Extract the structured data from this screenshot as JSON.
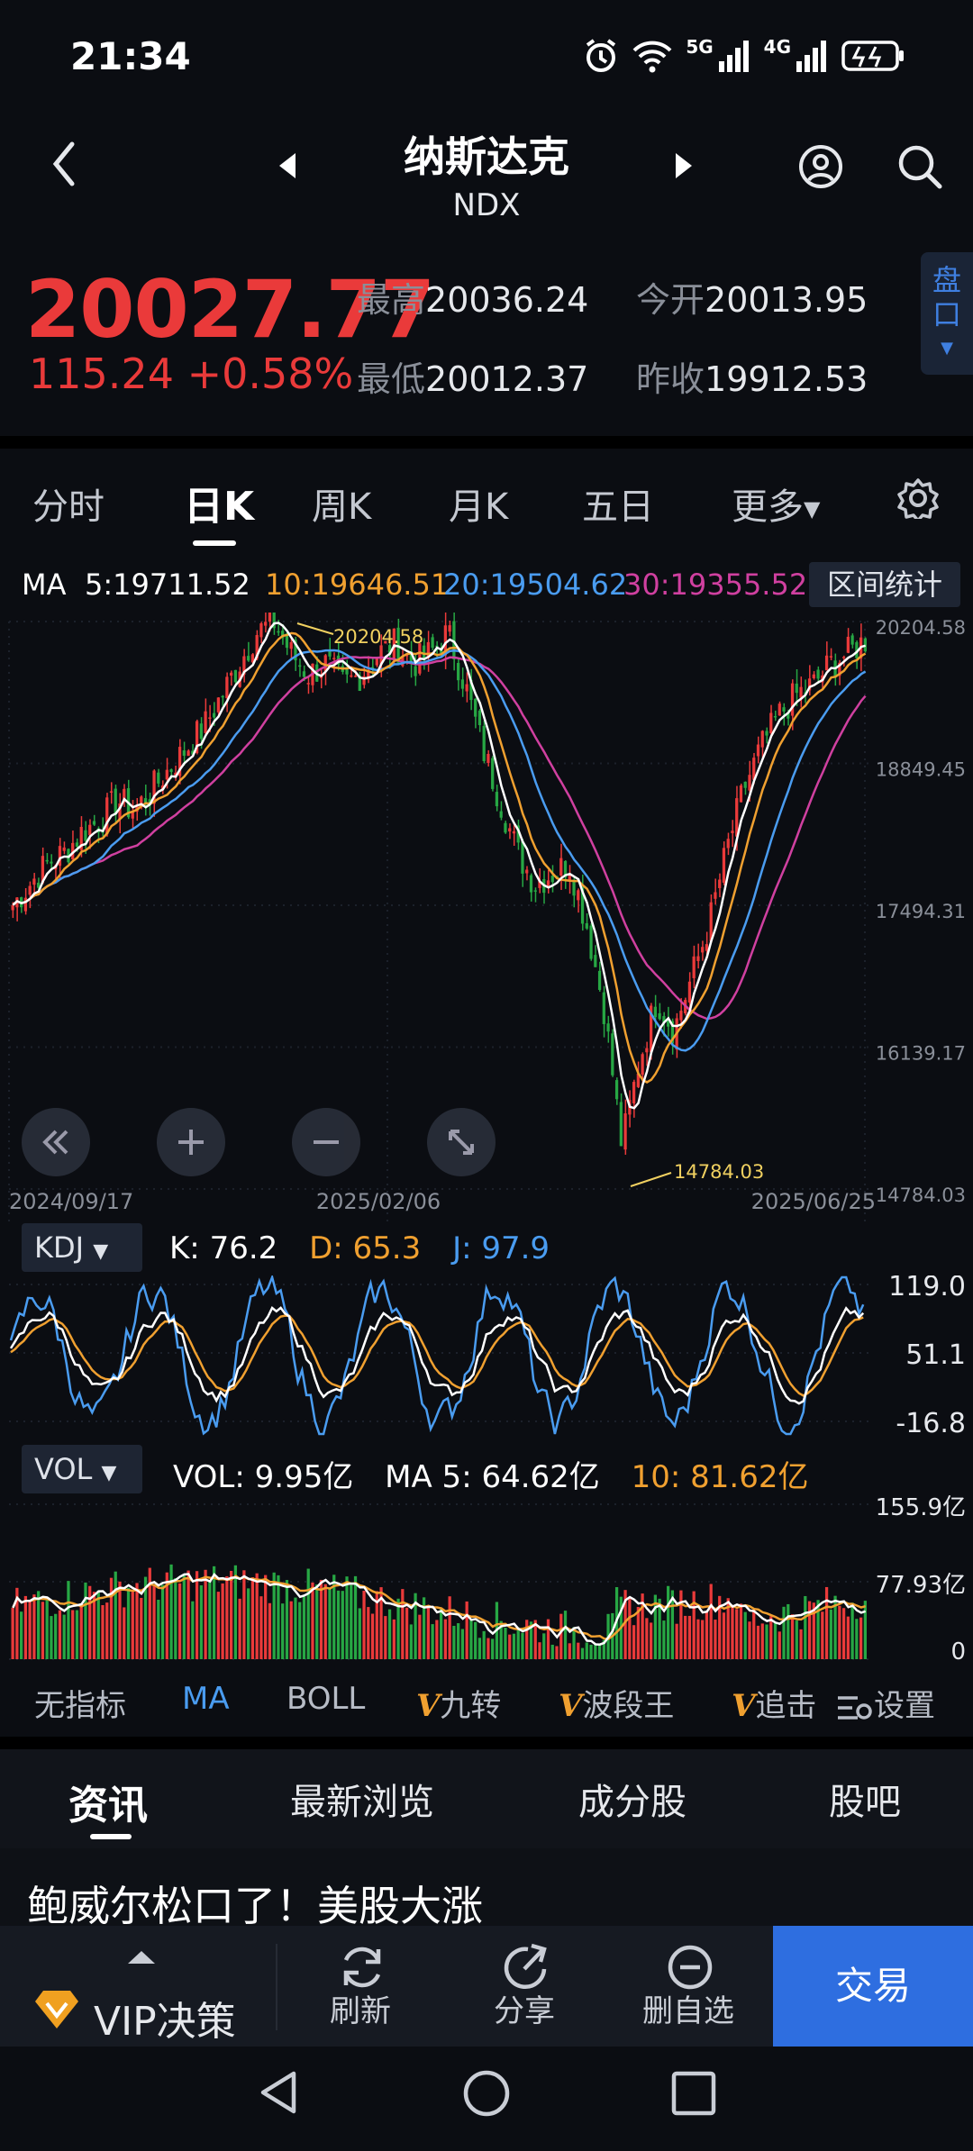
{
  "status": {
    "time": "21:34",
    "signal1": "5G",
    "signal2": "4G"
  },
  "nav": {
    "title": "纳斯达克",
    "code": "NDX"
  },
  "quote": {
    "price": "20027.77",
    "change": "115.24 +0.58%",
    "high_label": "最高",
    "high": "20036.24",
    "low_label": "最低",
    "low": "20012.37",
    "open_label": "今开",
    "open": "20013.95",
    "prev_label": "昨收",
    "prev": "19912.53",
    "pankou": "盘口"
  },
  "tabs": [
    "分时",
    "日K",
    "周K",
    "月K",
    "五日",
    "更多"
  ],
  "active_tab": "日K",
  "ma": {
    "label": "MA",
    "ma5": "5:19711.52",
    "ma10": "10:19646.51",
    "ma20": "20:19504.62",
    "ma30": "30:19355.52"
  },
  "range_stat": "区间统计",
  "colors": {
    "up": "#ea3a3a",
    "down": "#27a744",
    "ma5": "#ffffff",
    "ma10": "#f0a030",
    "ma20": "#4a9cf0",
    "ma30": "#d040a0",
    "accent": "#2e6ee0"
  },
  "chart_data": [
    {
      "type": "candlestick",
      "y_axis_labels": [
        "20204.58",
        "18849.45",
        "17494.31",
        "16139.17",
        "14784.03"
      ],
      "ylim": [
        14784.03,
        20204.58
      ],
      "x_axis_labels": [
        "2024/09/17",
        "2025/02/06",
        "2025/06/25"
      ],
      "max_label": "20204.58",
      "min_label": "14784.03",
      "series": [
        {
          "name": "MA5",
          "color": "#ffffff"
        },
        {
          "name": "MA10",
          "color": "#f0a030"
        },
        {
          "name": "MA20",
          "color": "#4a9cf0"
        },
        {
          "name": "MA30",
          "color": "#d040a0"
        }
      ],
      "close_trend": [
        17500,
        17700,
        17900,
        18000,
        18200,
        18300,
        18500,
        18400,
        18600,
        18800,
        19000,
        19200,
        19500,
        19800,
        20100,
        20204,
        19900,
        19700,
        19800,
        19600,
        19700,
        19900,
        20000,
        19800,
        19900,
        20100,
        19600,
        19000,
        18500,
        18000,
        17700,
        17800,
        17900,
        17300,
        16500,
        15200,
        16000,
        16600,
        16300,
        16800,
        17300,
        18000,
        18600,
        19000,
        19300,
        19500,
        19600,
        19800,
        19900,
        20027
      ]
    },
    {
      "type": "line",
      "indicator": "KDJ",
      "k_label": "K:",
      "k": "76.2",
      "d_label": "D:",
      "d": "65.3",
      "j_label": "J:",
      "j": "97.9",
      "y_axis_labels": [
        "119.0",
        "51.1",
        "-16.8"
      ],
      "ylim": [
        -16.8,
        119.0
      ]
    },
    {
      "type": "bar",
      "indicator": "VOL",
      "vol_label": "VOL:",
      "vol": "9.95亿",
      "ma5_label": "MA 5:",
      "ma5": "64.62亿",
      "ma10_label": "10:",
      "ma10": "81.62亿",
      "y_axis_labels": [
        "155.9亿",
        "77.93亿",
        "0"
      ],
      "ylim": [
        0,
        155.9
      ]
    }
  ],
  "indicators": [
    {
      "prefix": "",
      "label": "无指标"
    },
    {
      "prefix": "",
      "label": "MA"
    },
    {
      "prefix": "",
      "label": "BOLL"
    },
    {
      "prefix": "V",
      "label": "九转"
    },
    {
      "prefix": "V",
      "label": "波段王"
    },
    {
      "prefix": "V",
      "label": "追击"
    },
    {
      "prefix": "",
      "label": "设置"
    }
  ],
  "news_tabs": [
    "资讯",
    "最新浏览",
    "成分股",
    "股吧"
  ],
  "headline": "鲍威尔松口了！美股大涨",
  "bottom": {
    "vip": "VIP决策",
    "refresh": "刷新",
    "share": "分享",
    "remove": "删自选",
    "trade": "交易"
  }
}
